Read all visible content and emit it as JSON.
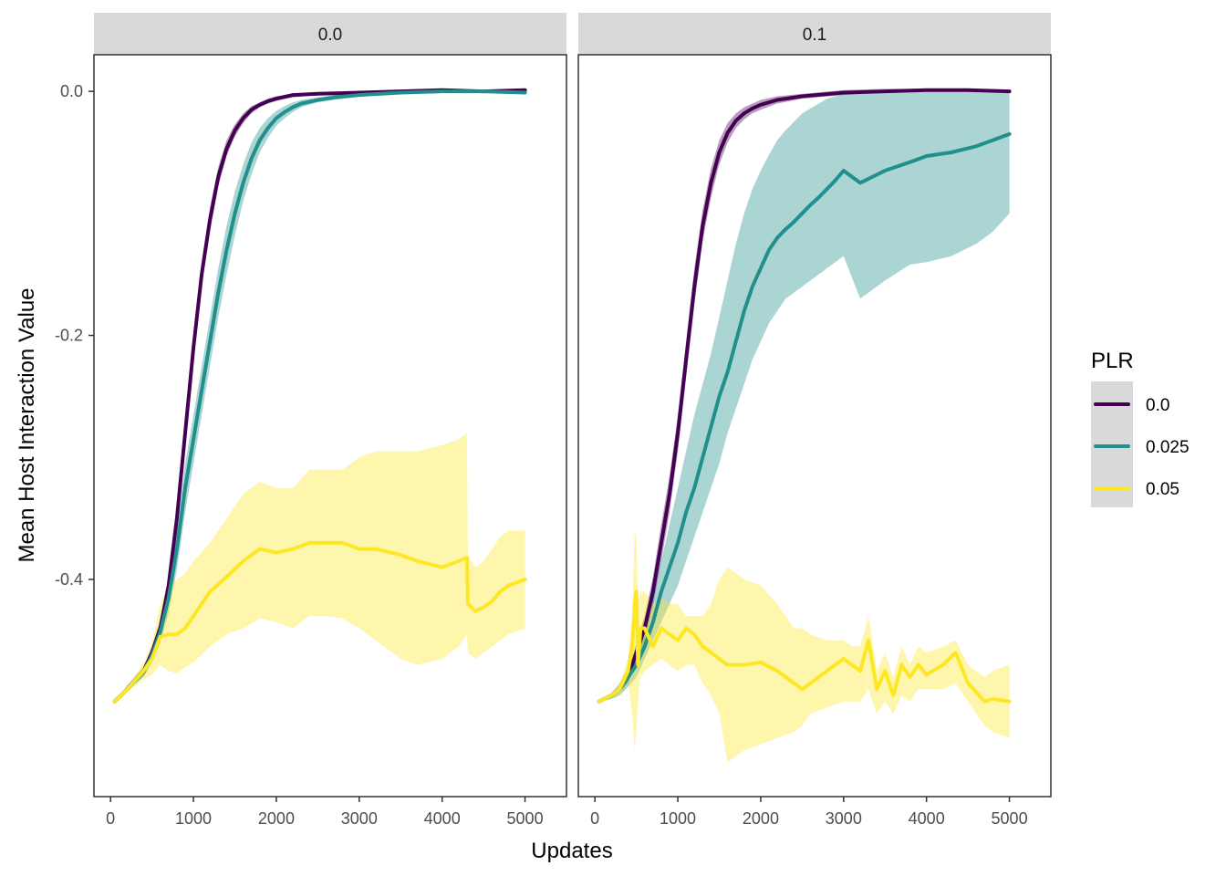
{
  "chart_data": {
    "type": "line",
    "xlabel": "Updates",
    "ylabel": "Mean Host Interaction Value",
    "xlim": [
      -200,
      5500
    ],
    "ylim": [
      -0.578,
      0.03
    ],
    "x_ticks": [
      "0",
      "1000",
      "2000",
      "3000",
      "4000",
      "5000"
    ],
    "x_tick_values": [
      0,
      1000,
      2000,
      3000,
      4000,
      5000
    ],
    "y_ticks": [
      "0.0",
      "-0.2",
      "-0.4"
    ],
    "y_tick_values": [
      0.0,
      -0.2,
      -0.4
    ],
    "grid": false,
    "legend": {
      "title": "PLR",
      "placement": "right",
      "entries": [
        {
          "label": "0.0",
          "color": "#440154"
        },
        {
          "label": "0.025",
          "color": "#21908C"
        },
        {
          "label": "0.05",
          "color": "#FDE725"
        }
      ]
    },
    "panels": [
      {
        "strip": "0.0",
        "series": [
          {
            "name": "0.0",
            "color": "#440154",
            "x": [
              50,
              200,
              400,
              500,
              600,
              700,
              800,
              900,
              1000,
              1100,
              1200,
              1300,
              1400,
              1500,
              1600,
              1700,
              1800,
              1900,
              2000,
              2200,
              2500,
              3000,
              3500,
              4000,
              4500,
              5000
            ],
            "y": [
              -0.5,
              -0.49,
              -0.475,
              -0.46,
              -0.44,
              -0.405,
              -0.35,
              -0.28,
              -0.21,
              -0.15,
              -0.105,
              -0.07,
              -0.047,
              -0.032,
              -0.022,
              -0.015,
              -0.011,
              -0.008,
              -0.006,
              -0.003,
              -0.002,
              -0.001,
              0.0,
              0.001,
              0.0,
              0.001
            ],
            "lower": [
              -0.5,
              -0.49,
              -0.478,
              -0.465,
              -0.447,
              -0.413,
              -0.36,
              -0.29,
              -0.22,
              -0.16,
              -0.115,
              -0.078,
              -0.053,
              -0.037,
              -0.026,
              -0.018,
              -0.013,
              -0.01,
              -0.008,
              -0.005,
              -0.003,
              -0.002,
              -0.001,
              0.0,
              -0.001,
              0.0
            ],
            "upper": [
              -0.5,
              -0.487,
              -0.472,
              -0.455,
              -0.433,
              -0.397,
              -0.34,
              -0.27,
              -0.2,
              -0.14,
              -0.095,
              -0.062,
              -0.04,
              -0.027,
              -0.018,
              -0.012,
              -0.009,
              -0.006,
              -0.004,
              -0.002,
              -0.001,
              0.0,
              0.001,
              0.002,
              0.001,
              0.002
            ]
          },
          {
            "name": "0.025",
            "color": "#21908C",
            "x": [
              50,
              200,
              400,
              500,
              600,
              700,
              800,
              900,
              1000,
              1100,
              1200,
              1300,
              1400,
              1500,
              1600,
              1700,
              1800,
              1900,
              2000,
              2100,
              2200,
              2300,
              2500,
              2700,
              3000,
              3500,
              4000,
              4500,
              5000
            ],
            "y": [
              -0.5,
              -0.49,
              -0.476,
              -0.462,
              -0.443,
              -0.415,
              -0.375,
              -0.325,
              -0.285,
              -0.245,
              -0.205,
              -0.165,
              -0.13,
              -0.1,
              -0.075,
              -0.055,
              -0.04,
              -0.03,
              -0.022,
              -0.017,
              -0.013,
              -0.01,
              -0.007,
              -0.005,
              -0.003,
              -0.001,
              0.0,
              0.0,
              -0.001
            ],
            "lower": [
              -0.5,
              -0.49,
              -0.48,
              -0.468,
              -0.452,
              -0.428,
              -0.392,
              -0.345,
              -0.305,
              -0.265,
              -0.225,
              -0.185,
              -0.15,
              -0.118,
              -0.09,
              -0.068,
              -0.05,
              -0.038,
              -0.028,
              -0.022,
              -0.017,
              -0.013,
              -0.009,
              -0.007,
              -0.004,
              -0.002,
              -0.001,
              -0.001,
              -0.002
            ],
            "upper": [
              -0.5,
              -0.488,
              -0.472,
              -0.456,
              -0.434,
              -0.402,
              -0.358,
              -0.305,
              -0.265,
              -0.225,
              -0.185,
              -0.145,
              -0.11,
              -0.082,
              -0.06,
              -0.042,
              -0.03,
              -0.022,
              -0.016,
              -0.012,
              -0.009,
              -0.007,
              -0.005,
              -0.003,
              -0.002,
              0.0,
              0.001,
              0.001,
              0.0
            ]
          },
          {
            "name": "0.05",
            "color": "#FDE725",
            "x": [
              50,
              200,
              400,
              500,
              600,
              700,
              800,
              900,
              1000,
              1200,
              1400,
              1600,
              1800,
              2000,
              2200,
              2400,
              2600,
              2800,
              3000,
              3200,
              3500,
              3700,
              4000,
              4200,
              4300,
              4310,
              4400,
              4500,
              4600,
              4700,
              4800,
              5000
            ],
            "y": [
              -0.5,
              -0.49,
              -0.475,
              -0.465,
              -0.447,
              -0.445,
              -0.445,
              -0.44,
              -0.43,
              -0.41,
              -0.398,
              -0.385,
              -0.375,
              -0.378,
              -0.375,
              -0.37,
              -0.37,
              -0.37,
              -0.375,
              -0.375,
              -0.38,
              -0.385,
              -0.39,
              -0.385,
              -0.382,
              -0.42,
              -0.426,
              -0.423,
              -0.418,
              -0.41,
              -0.405,
              -0.4
            ],
            "lower": [
              -0.5,
              -0.492,
              -0.482,
              -0.478,
              -0.47,
              -0.475,
              -0.477,
              -0.472,
              -0.468,
              -0.455,
              -0.445,
              -0.44,
              -0.432,
              -0.435,
              -0.44,
              -0.43,
              -0.43,
              -0.432,
              -0.44,
              -0.45,
              -0.465,
              -0.47,
              -0.465,
              -0.455,
              -0.445,
              -0.46,
              -0.465,
              -0.46,
              -0.455,
              -0.45,
              -0.445,
              -0.44
            ],
            "upper": [
              -0.5,
              -0.488,
              -0.468,
              -0.452,
              -0.42,
              -0.405,
              -0.4,
              -0.395,
              -0.385,
              -0.37,
              -0.35,
              -0.33,
              -0.32,
              -0.325,
              -0.325,
              -0.31,
              -0.31,
              -0.31,
              -0.3,
              -0.295,
              -0.295,
              -0.295,
              -0.29,
              -0.285,
              -0.28,
              -0.38,
              -0.39,
              -0.385,
              -0.375,
              -0.365,
              -0.36,
              -0.36
            ]
          }
        ]
      },
      {
        "strip": "0.1",
        "series": [
          {
            "name": "0.0",
            "color": "#440154",
            "x": [
              50,
              200,
              300,
              400,
              500,
              600,
              700,
              800,
              900,
              1000,
              1100,
              1200,
              1300,
              1400,
              1500,
              1600,
              1700,
              1800,
              1900,
              2000,
              2200,
              2500,
              3000,
              3500,
              4000,
              4500,
              5000
            ],
            "y": [
              -0.5,
              -0.495,
              -0.49,
              -0.48,
              -0.46,
              -0.44,
              -0.41,
              -0.37,
              -0.33,
              -0.28,
              -0.22,
              -0.16,
              -0.11,
              -0.075,
              -0.05,
              -0.034,
              -0.024,
              -0.018,
              -0.014,
              -0.011,
              -0.007,
              -0.004,
              -0.001,
              0.0,
              0.001,
              0.001,
              0.0
            ],
            "lower": [
              -0.5,
              -0.496,
              -0.492,
              -0.485,
              -0.468,
              -0.45,
              -0.422,
              -0.385,
              -0.345,
              -0.295,
              -0.235,
              -0.175,
              -0.123,
              -0.087,
              -0.06,
              -0.042,
              -0.03,
              -0.023,
              -0.018,
              -0.015,
              -0.01,
              -0.006,
              -0.003,
              -0.001,
              0.0,
              0.0,
              -0.001
            ],
            "upper": [
              -0.5,
              -0.494,
              -0.488,
              -0.475,
              -0.452,
              -0.43,
              -0.398,
              -0.355,
              -0.315,
              -0.265,
              -0.205,
              -0.145,
              -0.097,
              -0.063,
              -0.04,
              -0.026,
              -0.018,
              -0.013,
              -0.01,
              -0.007,
              -0.004,
              -0.002,
              0.001,
              0.002,
              0.002,
              0.002,
              0.001
            ]
          },
          {
            "name": "0.025",
            "color": "#21908C",
            "x": [
              50,
              200,
              300,
              400,
              500,
              600,
              700,
              800,
              900,
              1000,
              1100,
              1200,
              1300,
              1400,
              1500,
              1600,
              1700,
              1800,
              1900,
              2000,
              2100,
              2200,
              2300,
              2400,
              2500,
              2600,
              2700,
              2800,
              2900,
              3000,
              3200,
              3500,
              3800,
              4000,
              4300,
              4600,
              4800,
              5000
            ],
            "y": [
              -0.5,
              -0.495,
              -0.49,
              -0.48,
              -0.47,
              -0.455,
              -0.435,
              -0.41,
              -0.39,
              -0.37,
              -0.345,
              -0.325,
              -0.3,
              -0.275,
              -0.25,
              -0.23,
              -0.205,
              -0.18,
              -0.16,
              -0.145,
              -0.13,
              -0.12,
              -0.113,
              -0.107,
              -0.1,
              -0.093,
              -0.087,
              -0.08,
              -0.073,
              -0.065,
              -0.075,
              -0.065,
              -0.058,
              -0.053,
              -0.05,
              -0.045,
              -0.04,
              -0.035
            ],
            "lower": [
              -0.5,
              -0.498,
              -0.495,
              -0.488,
              -0.48,
              -0.465,
              -0.45,
              -0.435,
              -0.42,
              -0.405,
              -0.385,
              -0.365,
              -0.345,
              -0.325,
              -0.305,
              -0.28,
              -0.26,
              -0.24,
              -0.22,
              -0.205,
              -0.19,
              -0.18,
              -0.17,
              -0.165,
              -0.16,
              -0.155,
              -0.15,
              -0.145,
              -0.14,
              -0.135,
              -0.17,
              -0.155,
              -0.142,
              -0.14,
              -0.135,
              -0.125,
              -0.115,
              -0.1
            ],
            "upper": [
              -0.5,
              -0.493,
              -0.485,
              -0.472,
              -0.46,
              -0.44,
              -0.415,
              -0.385,
              -0.355,
              -0.325,
              -0.295,
              -0.265,
              -0.24,
              -0.215,
              -0.185,
              -0.155,
              -0.125,
              -0.1,
              -0.08,
              -0.065,
              -0.052,
              -0.04,
              -0.032,
              -0.025,
              -0.018,
              -0.014,
              -0.01,
              -0.006,
              -0.004,
              -0.002,
              -0.001,
              0.0,
              0.0,
              0.0,
              0.0,
              0.0,
              0.0,
              0.0
            ]
          },
          {
            "name": "0.05",
            "color": "#FDE725",
            "x": [
              50,
              200,
              300,
              400,
              450,
              480,
              500,
              520,
              550,
              600,
              700,
              800,
              900,
              1000,
              1100,
              1200,
              1300,
              1400,
              1500,
              1600,
              1800,
              2000,
              2200,
              2400,
              2500,
              2600,
              2800,
              3000,
              3100,
              3200,
              3300,
              3400,
              3500,
              3600,
              3700,
              3800,
              3900,
              4000,
              4200,
              4350,
              4500,
              4700,
              4800,
              5000
            ],
            "y": [
              -0.5,
              -0.495,
              -0.49,
              -0.475,
              -0.455,
              -0.42,
              -0.41,
              -0.47,
              -0.44,
              -0.44,
              -0.455,
              -0.44,
              -0.445,
              -0.45,
              -0.44,
              -0.445,
              -0.455,
              -0.46,
              -0.465,
              -0.47,
              -0.47,
              -0.468,
              -0.475,
              -0.485,
              -0.49,
              -0.485,
              -0.475,
              -0.465,
              -0.47,
              -0.475,
              -0.45,
              -0.49,
              -0.475,
              -0.495,
              -0.47,
              -0.48,
              -0.47,
              -0.478,
              -0.47,
              -0.46,
              -0.485,
              -0.5,
              -0.498,
              -0.5
            ],
            "lower": [
              -0.5,
              -0.497,
              -0.495,
              -0.485,
              -0.51,
              -0.54,
              -0.525,
              -0.5,
              -0.48,
              -0.475,
              -0.47,
              -0.465,
              -0.47,
              -0.475,
              -0.47,
              -0.47,
              -0.485,
              -0.495,
              -0.51,
              -0.55,
              -0.54,
              -0.535,
              -0.53,
              -0.525,
              -0.52,
              -0.51,
              -0.505,
              -0.5,
              -0.5,
              -0.5,
              -0.49,
              -0.51,
              -0.5,
              -0.51,
              -0.495,
              -0.5,
              -0.49,
              -0.49,
              -0.49,
              -0.485,
              -0.5,
              -0.52,
              -0.525,
              -0.53
            ],
            "upper": [
              -0.5,
              -0.493,
              -0.485,
              -0.465,
              -0.43,
              -0.36,
              -0.365,
              -0.42,
              -0.41,
              -0.41,
              -0.42,
              -0.415,
              -0.42,
              -0.42,
              -0.43,
              -0.43,
              -0.43,
              -0.42,
              -0.4,
              -0.39,
              -0.4,
              -0.405,
              -0.42,
              -0.44,
              -0.44,
              -0.445,
              -0.45,
              -0.45,
              -0.455,
              -0.455,
              -0.43,
              -0.475,
              -0.46,
              -0.48,
              -0.455,
              -0.47,
              -0.455,
              -0.46,
              -0.455,
              -0.45,
              -0.47,
              -0.48,
              -0.475,
              -0.47
            ]
          }
        ]
      }
    ]
  }
}
